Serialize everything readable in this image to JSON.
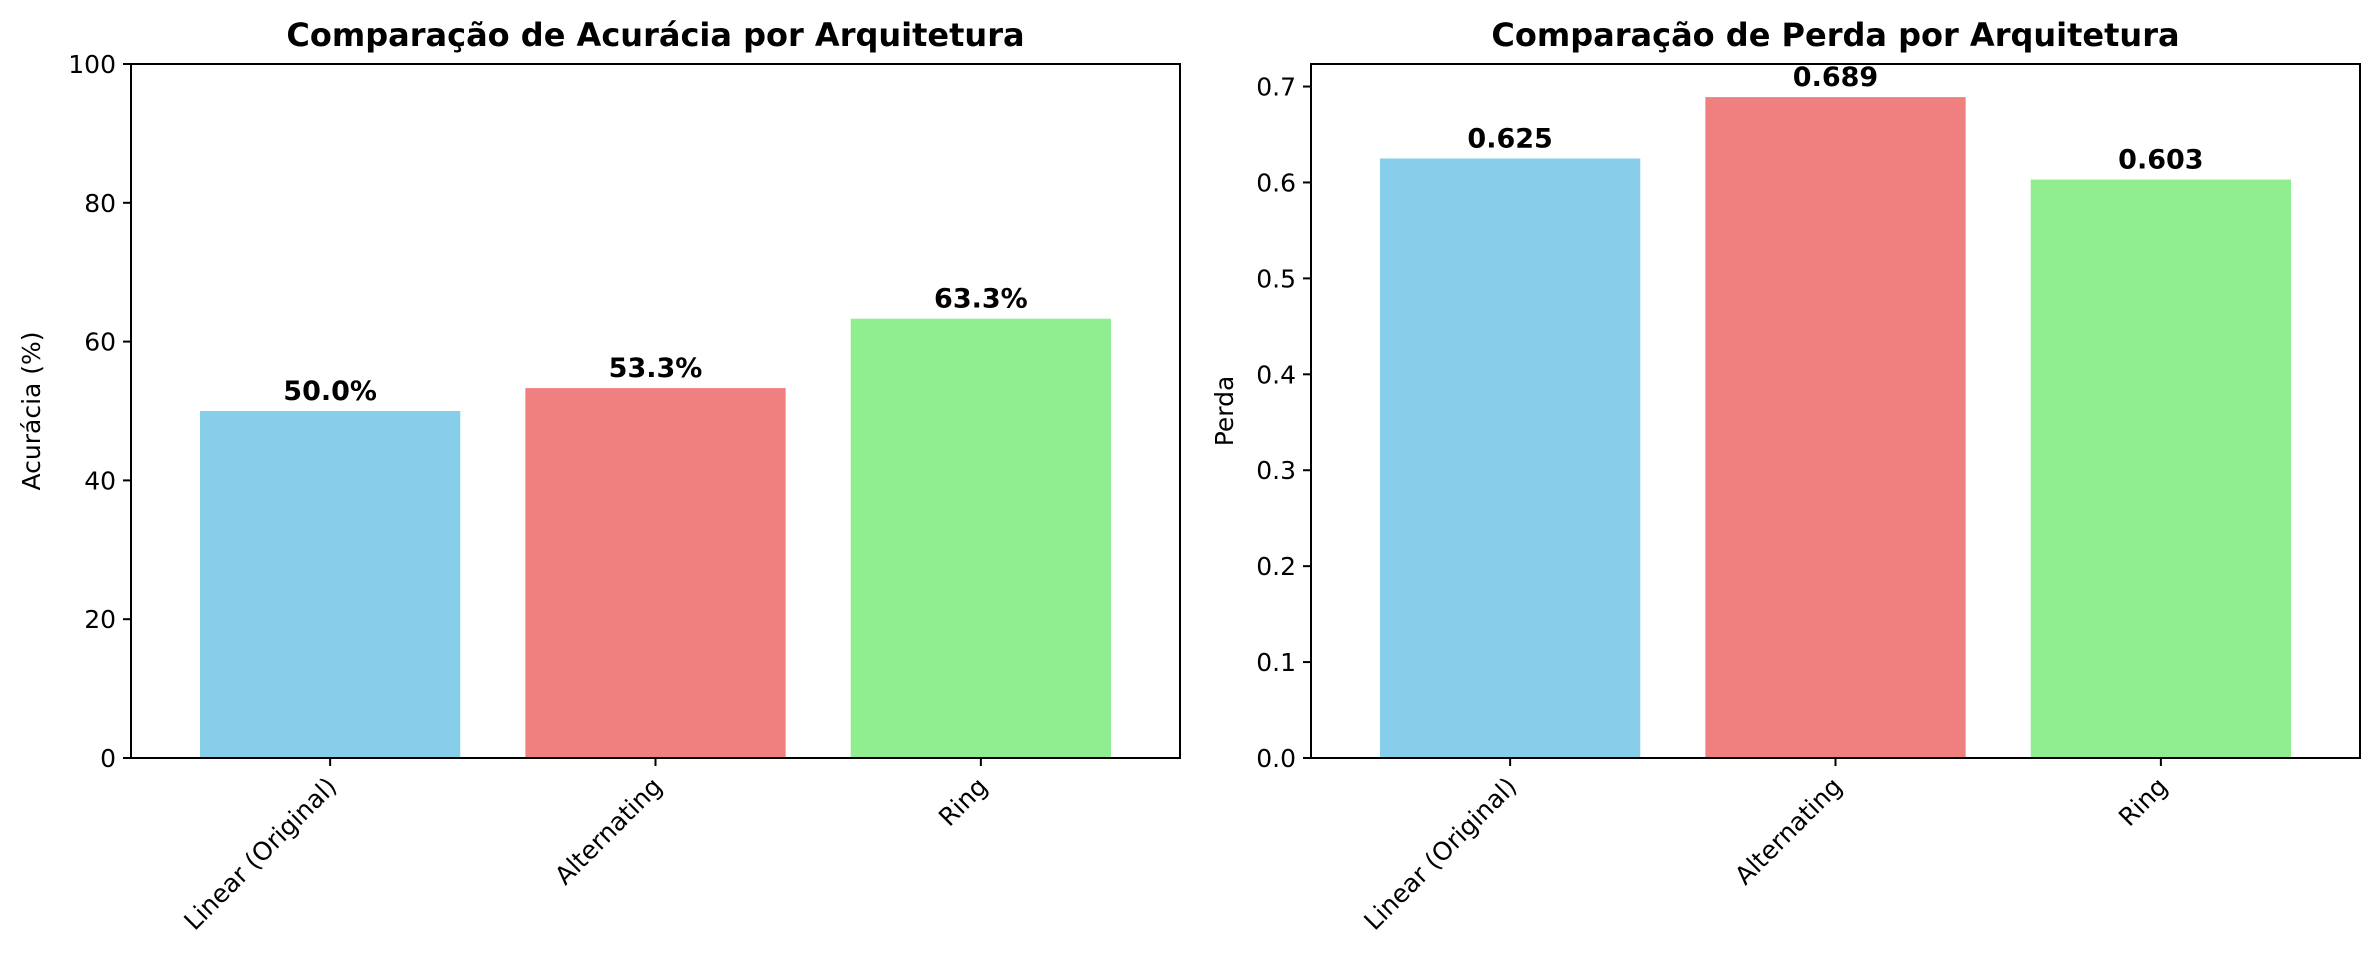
{
  "chart_data": [
    {
      "type": "bar",
      "title": "Comparação de Acurácia por Arquitetura",
      "xlabel": "",
      "ylabel": "Acurácia (%)",
      "categories": [
        "Linear (Original)",
        "Alternating",
        "Ring"
      ],
      "values": [
        50.0,
        53.3,
        63.3
      ],
      "value_labels": [
        "50.0%",
        "53.3%",
        "63.3%"
      ],
      "colors": [
        "#87ceeb",
        "#f08080",
        "#90ee90"
      ],
      "ylim": [
        0,
        100
      ],
      "yticks": [
        0,
        20,
        40,
        60,
        80,
        100
      ],
      "ytick_labels": [
        "0",
        "20",
        "40",
        "60",
        "80",
        "100"
      ],
      "grid": false
    },
    {
      "type": "bar",
      "title": "Comparação de Perda por Arquitetura",
      "xlabel": "",
      "ylabel": "Perda",
      "categories": [
        "Linear (Original)",
        "Alternating",
        "Ring"
      ],
      "values": [
        0.625,
        0.689,
        0.603
      ],
      "value_labels": [
        "0.625",
        "0.689",
        "0.603"
      ],
      "colors": [
        "#87ceeb",
        "#f08080",
        "#90ee90"
      ],
      "ylim": [
        0,
        0.7235
      ],
      "yticks": [
        0,
        0.1,
        0.2,
        0.3,
        0.4,
        0.5,
        0.6,
        0.7
      ],
      "ytick_labels": [
        "0.0",
        "0.1",
        "0.2",
        "0.3",
        "0.4",
        "0.5",
        "0.6",
        "0.7"
      ],
      "grid": false
    }
  ]
}
